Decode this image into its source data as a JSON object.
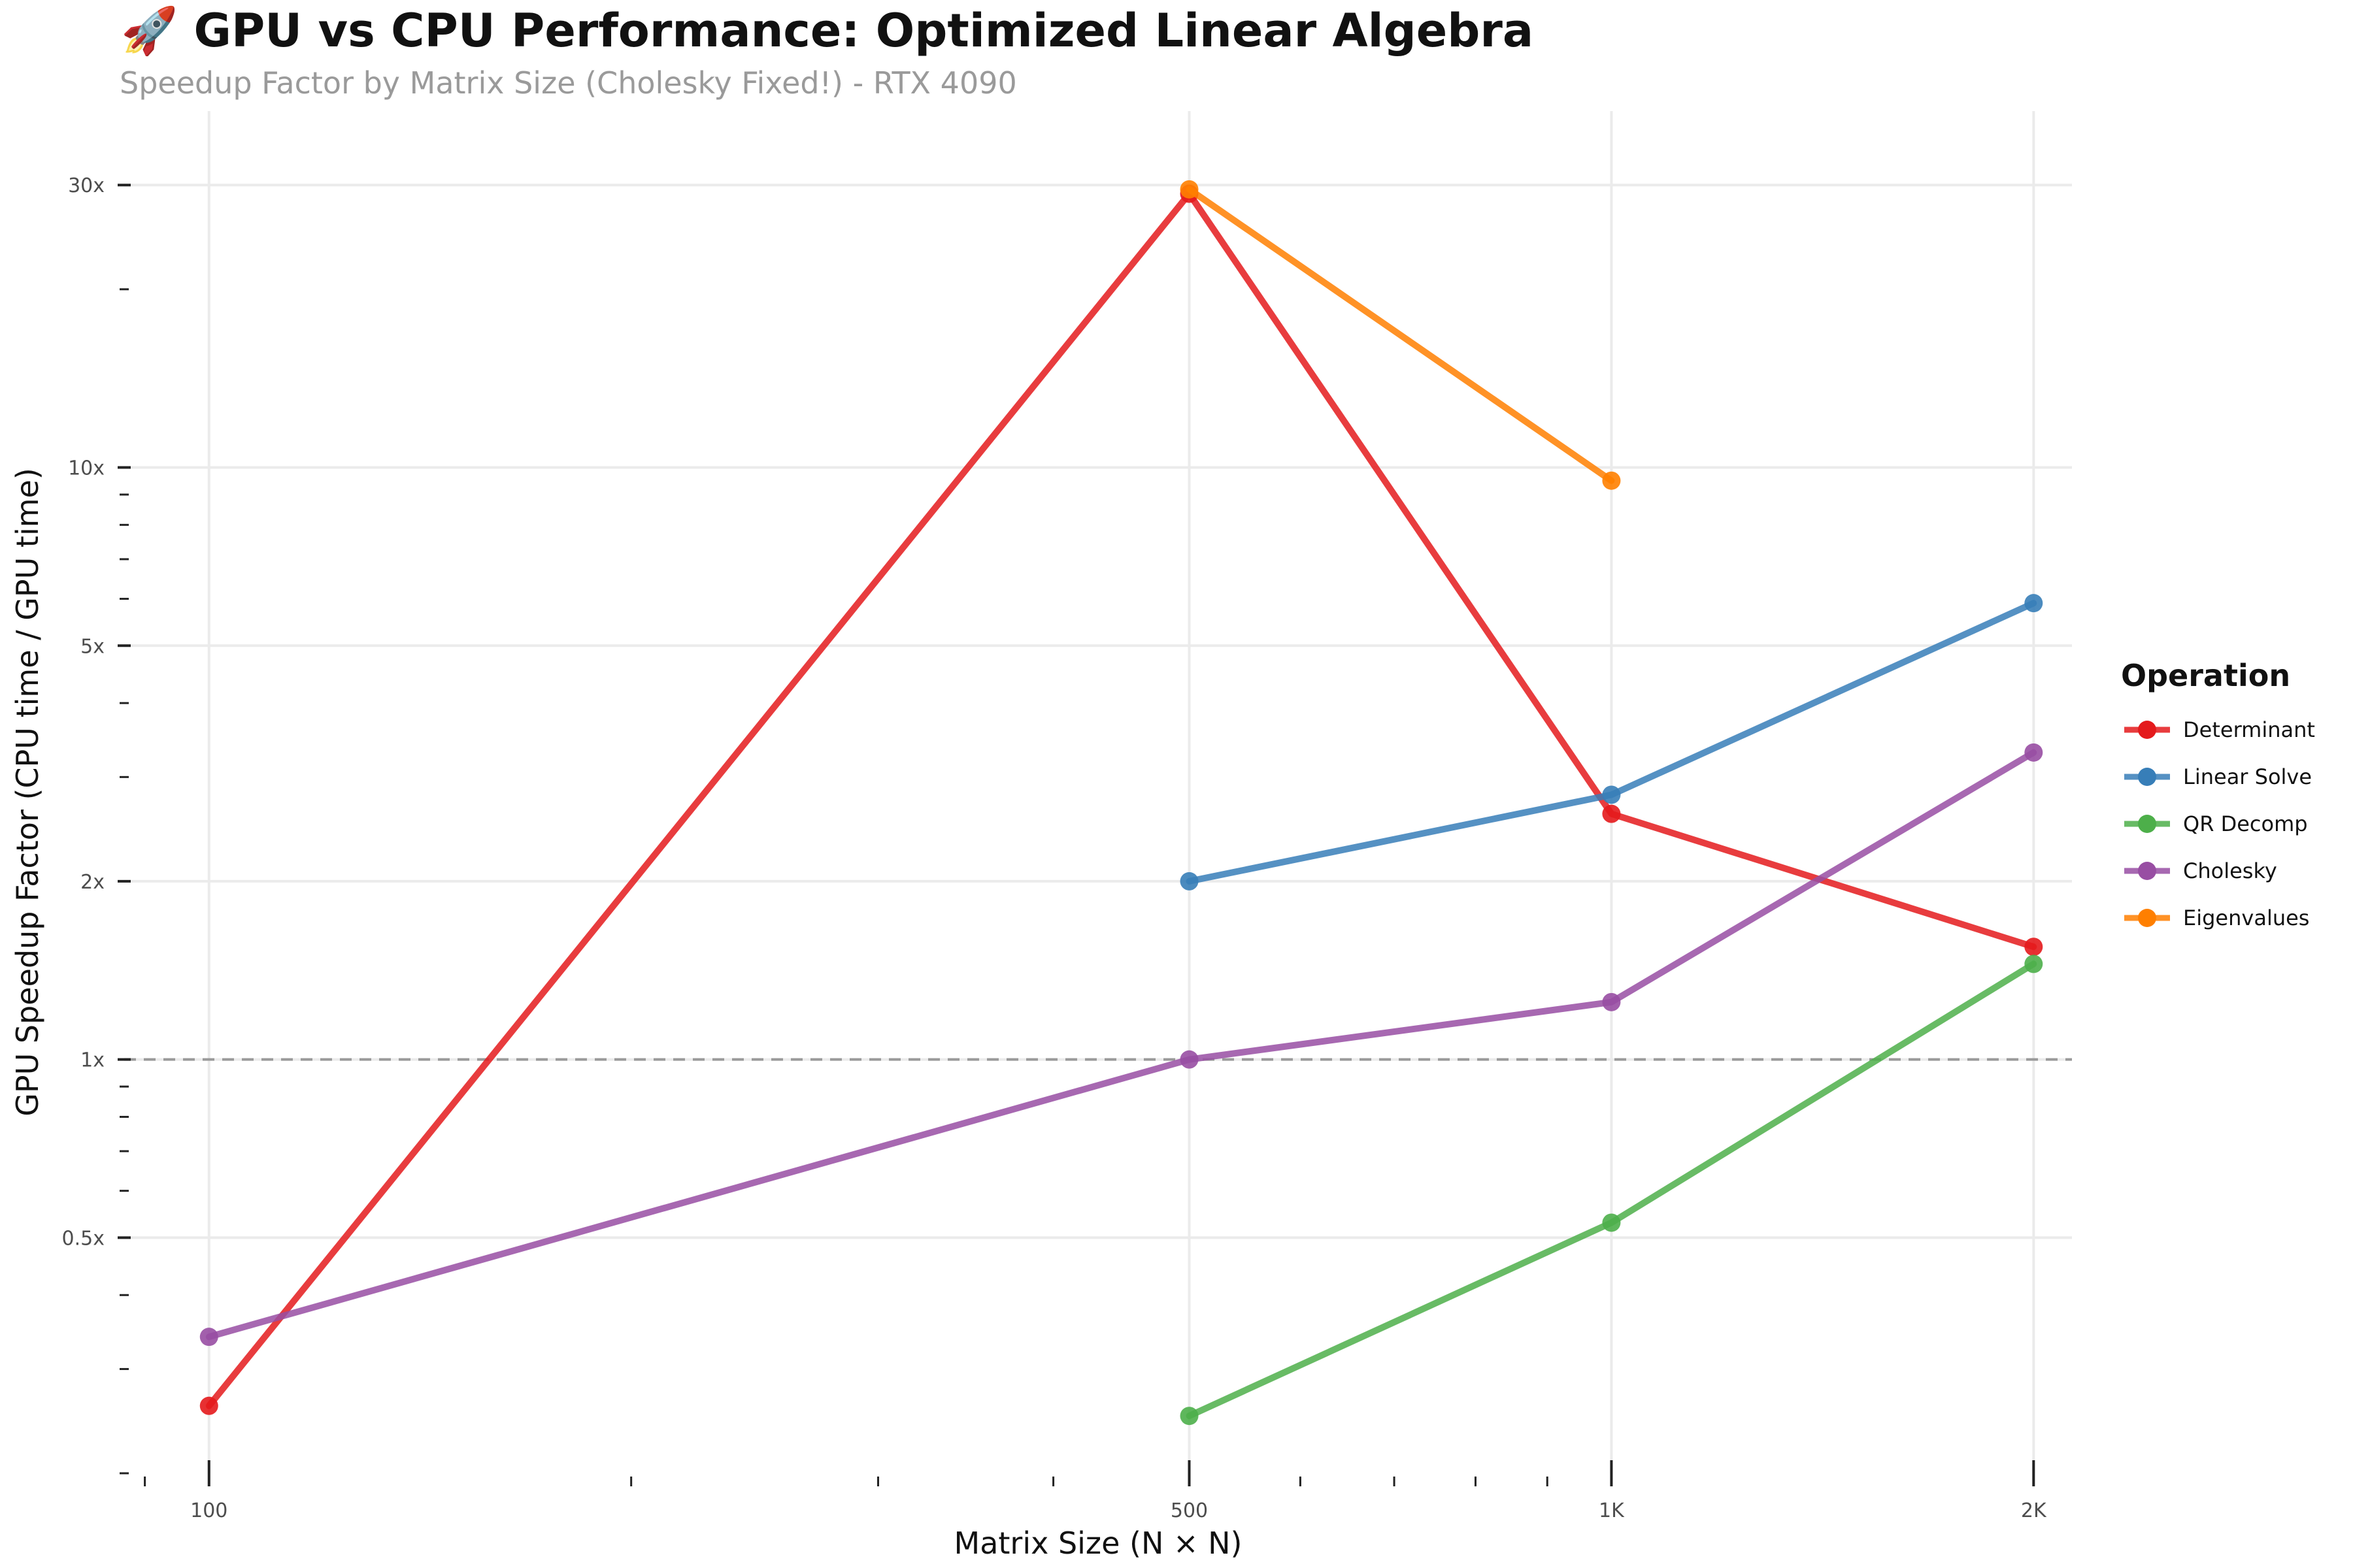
{
  "title": "🚀 GPU vs CPU Performance: Optimized Linear Algebra",
  "subtitle": "Speedup Factor by Matrix Size (Cholesky Fixed!) - RTX 4090",
  "chart_data": {
    "type": "line",
    "xlabel": "Matrix Size (N × N)",
    "ylabel": "GPU Speedup Factor (CPU time / GPU time)",
    "x_scale": "log",
    "y_scale": "log",
    "xlim": [
      87,
      2130
    ],
    "ylim": [
      0.2,
      40
    ],
    "x_ticks": [
      {
        "value": 100,
        "label": "100"
      },
      {
        "value": 500,
        "label": "500"
      },
      {
        "value": 1000,
        "label": "1K"
      },
      {
        "value": 2000,
        "label": "2K"
      }
    ],
    "y_ticks": [
      {
        "value": 0.5,
        "label": "0.5x"
      },
      {
        "value": 1,
        "label": "1x"
      },
      {
        "value": 2,
        "label": "2x"
      },
      {
        "value": 5,
        "label": "5x"
      },
      {
        "value": 10,
        "label": "10x"
      },
      {
        "value": 30,
        "label": "30x"
      }
    ],
    "x_minor_ticks": [
      90,
      200,
      300,
      400,
      600,
      700,
      800,
      900
    ],
    "y_minor_ticks": [
      0.2,
      0.3,
      0.4,
      0.6,
      0.7,
      0.8,
      0.9,
      3,
      4,
      6,
      7,
      8,
      9,
      20
    ],
    "reference_line": {
      "y": 1,
      "style": "dashed"
    },
    "grid": true,
    "legend": {
      "title": "Operation",
      "position": "right"
    },
    "series": [
      {
        "name": "Determinant",
        "color": "#e41a1c",
        "points": [
          [
            100,
            0.26
          ],
          [
            500,
            29.0
          ],
          [
            1000,
            2.6
          ],
          [
            2000,
            1.55
          ]
        ]
      },
      {
        "name": "Linear Solve",
        "color": "#377eb8",
        "points": [
          [
            500,
            2.0
          ],
          [
            1000,
            2.8
          ],
          [
            2000,
            5.9
          ]
        ]
      },
      {
        "name": "QR Decomp",
        "color": "#4daf4a",
        "points": [
          [
            500,
            0.25
          ],
          [
            1000,
            0.53
          ],
          [
            2000,
            1.45
          ]
        ]
      },
      {
        "name": "Cholesky",
        "color": "#984ea3",
        "points": [
          [
            100,
            0.34
          ],
          [
            500,
            1.0
          ],
          [
            1000,
            1.25
          ],
          [
            2000,
            3.3
          ]
        ]
      },
      {
        "name": "Eigenvalues",
        "color": "#ff7f00",
        "points": [
          [
            500,
            29.5
          ],
          [
            1000,
            9.5
          ]
        ]
      }
    ]
  }
}
